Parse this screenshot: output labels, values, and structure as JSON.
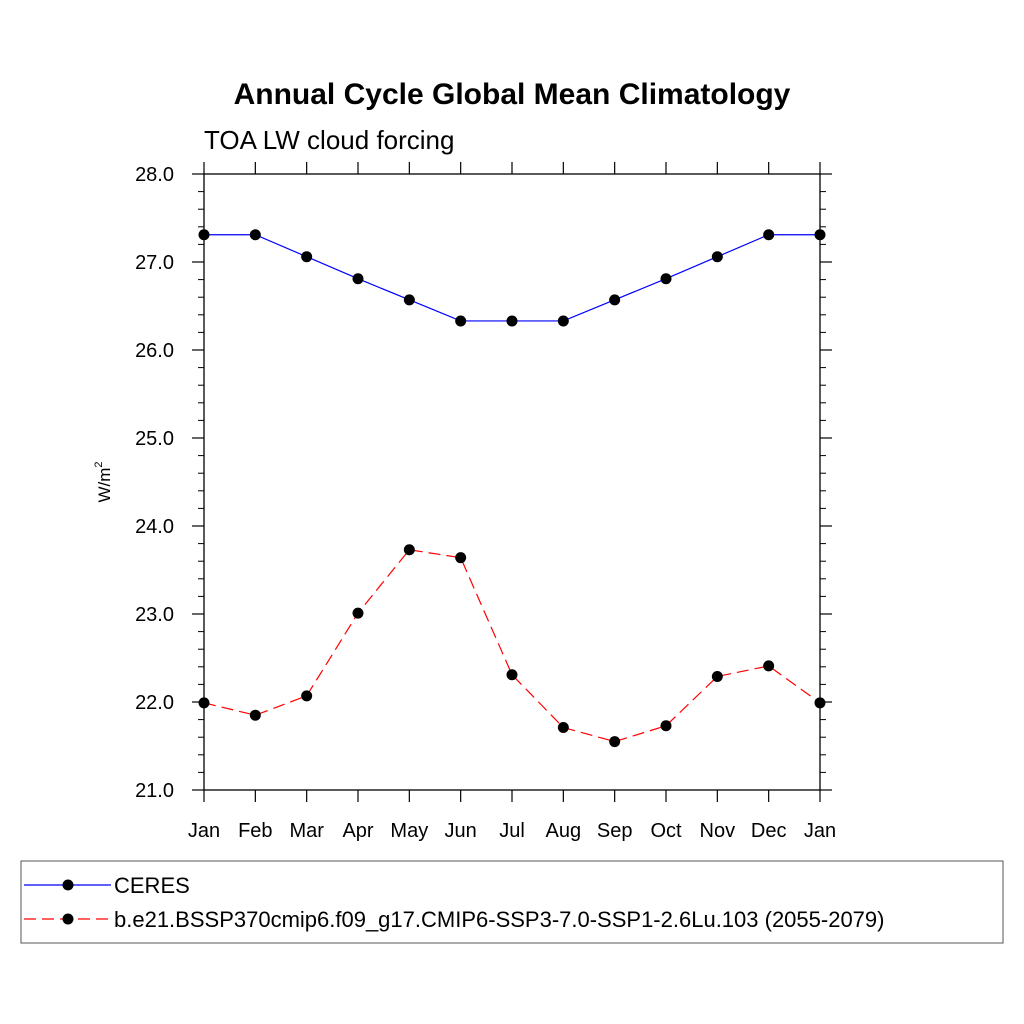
{
  "chart_data": {
    "type": "line",
    "title": "Annual Cycle Global Mean Climatology",
    "subtitle": "TOA LW cloud forcing",
    "ylabel": "W/m",
    "ylabel_superscript": "2",
    "ylim": [
      21.0,
      28.0
    ],
    "yticks": [
      21.0,
      22.0,
      23.0,
      24.0,
      25.0,
      26.0,
      27.0,
      28.0
    ],
    "ytick_labels": [
      "21.0",
      "22.0",
      "23.0",
      "24.0",
      "25.0",
      "26.0",
      "27.0",
      "28.0"
    ],
    "categories": [
      "Jan",
      "Feb",
      "Mar",
      "Apr",
      "May",
      "Jun",
      "Jul",
      "Aug",
      "Sep",
      "Oct",
      "Nov",
      "Dec",
      "Jan"
    ],
    "grid": false,
    "legend_position": "bottom",
    "series": [
      {
        "name": "CERES",
        "color": "#0000ff",
        "line_style": "solid",
        "marker": "filled-circle",
        "values": [
          27.31,
          27.31,
          27.06,
          26.81,
          26.57,
          26.33,
          26.33,
          26.33,
          26.57,
          26.81,
          27.06,
          27.31,
          27.31
        ]
      },
      {
        "name": "b.e21.BSSP370cmip6.f09_g17.CMIP6-SSP3-7.0-SSP1-2.6Lu.103 (2055-2079)",
        "color": "#ff0000",
        "line_style": "dashed",
        "marker": "filled-circle",
        "values": [
          21.99,
          21.85,
          22.07,
          23.01,
          23.73,
          23.64,
          22.31,
          21.71,
          21.55,
          21.73,
          22.29,
          22.41,
          21.99
        ]
      }
    ]
  }
}
